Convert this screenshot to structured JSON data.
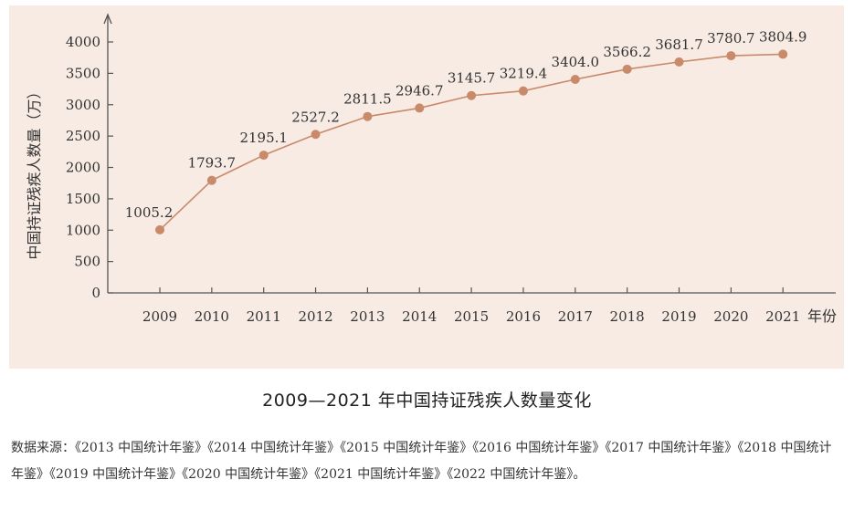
{
  "chart_data": {
    "type": "line",
    "title": "",
    "xlabel": "年份",
    "ylabel": "中国持证残疾人数量（万）",
    "categories": [
      "2009",
      "2010",
      "2011",
      "2012",
      "2013",
      "2014",
      "2015",
      "2016",
      "2017",
      "2018",
      "2019",
      "2020",
      "2021"
    ],
    "values": [
      1005.2,
      1793.7,
      2195.1,
      2527.2,
      2811.5,
      2946.7,
      3145.7,
      3219.4,
      3404.0,
      3566.2,
      3681.7,
      3780.7,
      3804.9
    ],
    "data_labels": [
      "1005.2",
      "1793.7",
      "2195.1",
      "2527.2",
      "2811.5",
      "2946.7",
      "3145.7",
      "3219.4",
      "3404.0",
      "3566.2",
      "3681.7",
      "3780.7",
      "3804.9"
    ],
    "yticks": [
      "0",
      "500",
      "1000",
      "1500",
      "2000",
      "2500",
      "3000",
      "3500",
      "4000"
    ],
    "ylim": [
      0,
      4000
    ],
    "grid": false,
    "line_color": "#c98a6a",
    "marker_color": "#c98a6a",
    "background": "#f7ebe4"
  },
  "caption": "2009—2021 年中国持证残疾人数量变化",
  "source": "数据来源：《2013 中国统计年鉴》《2014 中国统计年鉴》《2015 中国统计年鉴》《2016 中国统计年鉴》《2017 中国统计年鉴》《2018 中国统计年鉴》《2019 中国统计年鉴》《2020 中国统计年鉴》《2021 中国统计年鉴》《2022 中国统计年鉴》。"
}
